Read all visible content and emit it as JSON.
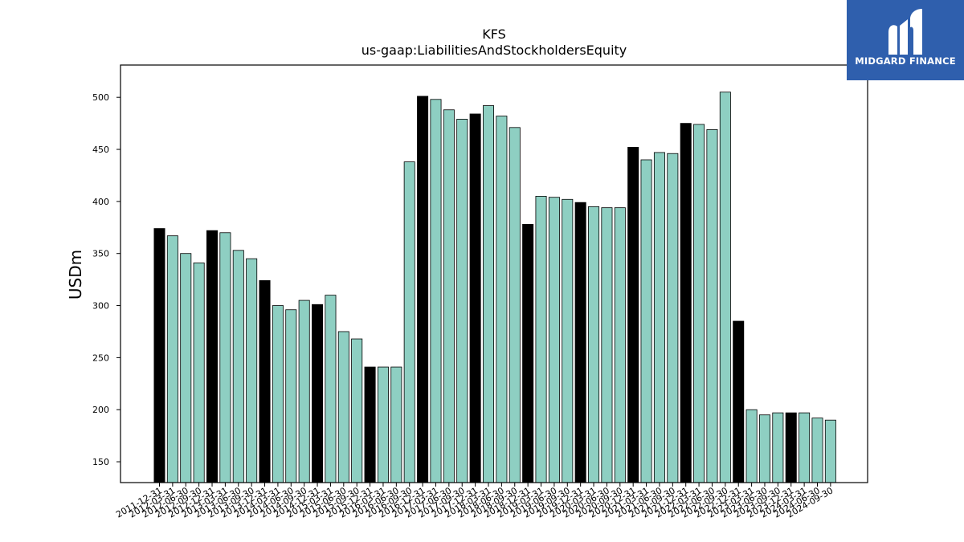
{
  "brand": {
    "name": "MIDGARD FINANCE",
    "bg_color": "#2f5fad"
  },
  "chart_data": {
    "type": "bar",
    "title": "KFS",
    "subtitle": "us-gaap:LiabilitiesAndStockholdersEquity",
    "xlabel": "",
    "ylabel": "USDm",
    "ylim": [
      130,
      531
    ],
    "yticks": [
      150,
      200,
      250,
      300,
      350,
      400,
      450,
      500
    ],
    "grid": false,
    "colors": {
      "highlight": "#000000",
      "normal": "#8ecfc2",
      "edge": "#000000"
    },
    "categories": [
      "2011-12-31",
      "2012-03-31",
      "2012-06-30",
      "2012-09-30",
      "2012-12-31",
      "2013-03-31",
      "2013-06-30",
      "2013-09-30",
      "2013-12-31",
      "2014-03-31",
      "2014-06-30",
      "2014-09-30",
      "2014-12-31",
      "2015-03-31",
      "2015-06-30",
      "2015-09-30",
      "2015-12-31",
      "2016-03-31",
      "2016-06-30",
      "2016-09-30",
      "2016-12-31",
      "2017-03-31",
      "2017-06-30",
      "2017-09-30",
      "2017-12-31",
      "2018-03-31",
      "2018-06-30",
      "2018-09-30",
      "2018-12-31",
      "2019-03-31",
      "2019-06-30",
      "2019-09-30",
      "2019-12-31",
      "2020-03-31",
      "2020-06-30",
      "2020-09-30",
      "2020-12-31",
      "2021-03-31",
      "2021-06-30",
      "2021-09-30",
      "2021-12-31",
      "2022-03-31",
      "2022-06-30",
      "2022-09-30",
      "2022-12-31",
      "2023-03-31",
      "2023-06-30",
      "2023-09-30",
      "2023-12-31",
      "2024-03-31",
      "2024-06-30",
      "2024-09-30"
    ],
    "values": [
      374,
      367,
      350,
      341,
      372,
      370,
      353,
      345,
      324,
      300,
      296,
      305,
      301,
      310,
      275,
      268,
      241,
      241,
      241,
      438,
      501,
      498,
      488,
      479,
      484,
      492,
      482,
      471,
      378,
      405,
      404,
      402,
      399,
      395,
      394,
      394,
      452,
      440,
      447,
      446,
      475,
      474,
      469,
      505,
      285,
      200,
      195,
      197,
      197,
      197,
      192,
      190
    ],
    "highlighted": [
      true,
      false,
      false,
      false,
      true,
      false,
      false,
      false,
      true,
      false,
      false,
      false,
      true,
      false,
      false,
      false,
      true,
      false,
      false,
      false,
      true,
      false,
      false,
      false,
      true,
      false,
      false,
      false,
      true,
      false,
      false,
      false,
      true,
      false,
      false,
      false,
      true,
      false,
      false,
      false,
      true,
      false,
      false,
      false,
      true,
      false,
      false,
      false,
      true,
      false,
      false,
      false
    ]
  }
}
